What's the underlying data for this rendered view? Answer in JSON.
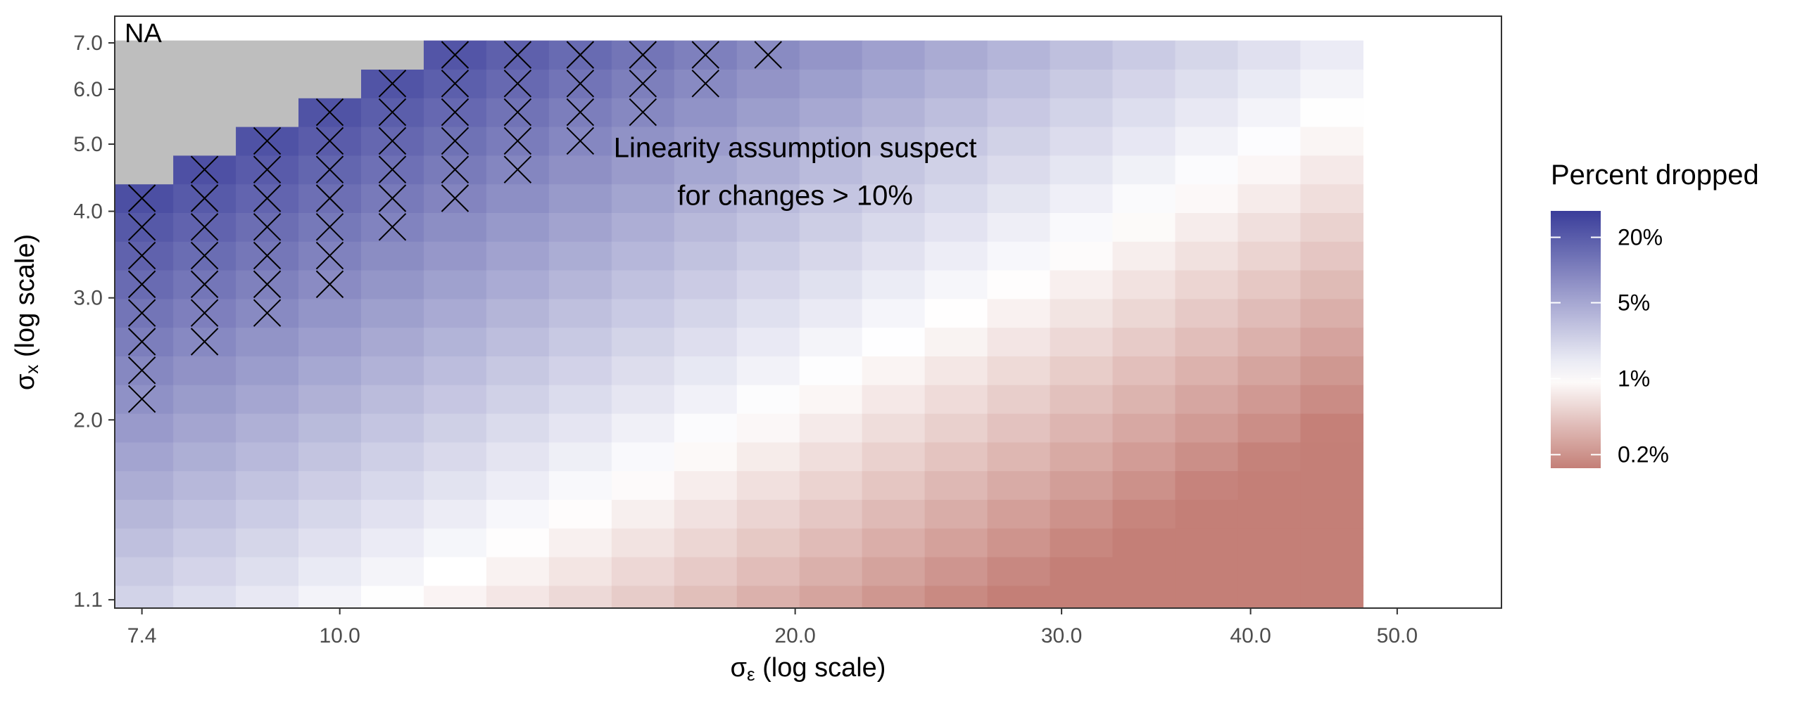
{
  "chart_data": {
    "type": "heatmap",
    "x_label_sym": "σ",
    "x_label_sub": "ε",
    "x_label_rest": " (log scale)",
    "y_label_sym": "σ",
    "y_label_sub": "x",
    "y_label_rest": " (log scale)",
    "x_scale": "log",
    "y_scale": "log",
    "x_range": [
      7.1,
      58.6
    ],
    "y_range": [
      1.07,
      7.65
    ],
    "x_ticks": [
      {
        "value": 7.4,
        "label": "7.4"
      },
      {
        "value": 10.0,
        "label": "10.0"
      },
      {
        "value": 20.0,
        "label": "20.0"
      },
      {
        "value": 30.0,
        "label": "30.0"
      },
      {
        "value": 40.0,
        "label": "40.0"
      },
      {
        "value": 50.0,
        "label": "50.0"
      }
    ],
    "y_ticks": [
      {
        "value": 1.1,
        "label": "1.1"
      },
      {
        "value": 2.0,
        "label": "2.0"
      },
      {
        "value": 3.0,
        "label": "3.0"
      },
      {
        "value": 4.0,
        "label": "4.0"
      },
      {
        "value": 5.0,
        "label": "5.0"
      },
      {
        "value": 6.0,
        "label": "6.0"
      },
      {
        "value": 7.0,
        "label": "7.0"
      }
    ],
    "grid": {
      "x_start": 7.4,
      "x_ratio": 1.1,
      "nx": 20,
      "y_start": 1.1,
      "y_ratio": 1.1,
      "ny": 20
    },
    "na_label": "NA",
    "na_cells": [
      [
        0,
        15
      ],
      [
        0,
        16
      ],
      [
        0,
        17
      ],
      [
        0,
        18
      ],
      [
        0,
        19
      ],
      [
        1,
        16
      ],
      [
        1,
        17
      ],
      [
        1,
        18
      ],
      [
        1,
        19
      ],
      [
        2,
        17
      ],
      [
        2,
        18
      ],
      [
        2,
        19
      ],
      [
        3,
        18
      ],
      [
        3,
        19
      ],
      [
        4,
        19
      ]
    ],
    "crossed_cells": [
      [
        0,
        7
      ],
      [
        0,
        8
      ],
      [
        0,
        9
      ],
      [
        0,
        10
      ],
      [
        0,
        11
      ],
      [
        0,
        12
      ],
      [
        0,
        13
      ],
      [
        0,
        14
      ],
      [
        1,
        9
      ],
      [
        1,
        10
      ],
      [
        1,
        11
      ],
      [
        1,
        12
      ],
      [
        1,
        13
      ],
      [
        1,
        14
      ],
      [
        1,
        15
      ],
      [
        2,
        10
      ],
      [
        2,
        11
      ],
      [
        2,
        12
      ],
      [
        2,
        13
      ],
      [
        2,
        14
      ],
      [
        2,
        15
      ],
      [
        2,
        16
      ],
      [
        3,
        11
      ],
      [
        3,
        12
      ],
      [
        3,
        13
      ],
      [
        3,
        14
      ],
      [
        3,
        15
      ],
      [
        3,
        16
      ],
      [
        3,
        17
      ],
      [
        4,
        13
      ],
      [
        4,
        14
      ],
      [
        4,
        15
      ],
      [
        4,
        16
      ],
      [
        4,
        17
      ],
      [
        4,
        18
      ],
      [
        5,
        14
      ],
      [
        5,
        15
      ],
      [
        5,
        16
      ],
      [
        5,
        17
      ],
      [
        5,
        18
      ],
      [
        5,
        19
      ],
      [
        6,
        15
      ],
      [
        6,
        16
      ],
      [
        6,
        17
      ],
      [
        6,
        18
      ],
      [
        6,
        19
      ],
      [
        7,
        16
      ],
      [
        7,
        17
      ],
      [
        7,
        18
      ],
      [
        7,
        19
      ],
      [
        8,
        17
      ],
      [
        8,
        18
      ],
      [
        8,
        19
      ],
      [
        9,
        18
      ],
      [
        9,
        19
      ],
      [
        10,
        19
      ]
    ],
    "value_model": {
      "description": "log10(percent dropped) ≈ a + b*i + c*j for grid column i, row j",
      "a": 0.35,
      "b": -0.085,
      "c": 0.075
    },
    "annotation_lines": [
      "Linearity assumption suspect",
      "for changes > 10%"
    ],
    "annotation_x": 20.0,
    "annotation_y": 4.2,
    "legend": {
      "title": "Percent dropped",
      "entries": [
        {
          "value": 20,
          "label": "20%"
        },
        {
          "value": 5,
          "label": "5%"
        },
        {
          "value": 1,
          "label": "1%"
        },
        {
          "value": 0.2,
          "label": "0.2%"
        }
      ],
      "limits": [
        0.15,
        35
      ]
    },
    "colors": {
      "high": "#3a3d9a",
      "mid": "#ffffff",
      "low": "#c47f77",
      "na": "#bebebe"
    }
  }
}
